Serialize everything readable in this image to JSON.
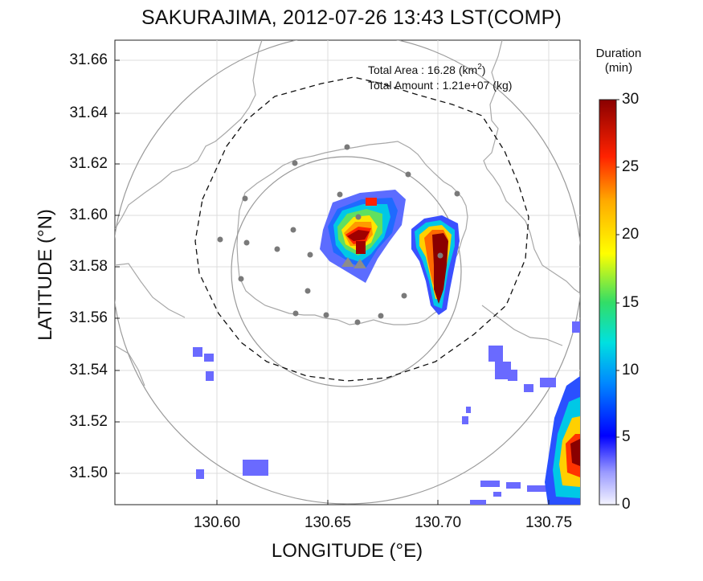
{
  "title": "SAKURAJIMA, 2012-07-26 13:43 LST(COMP)",
  "axes": {
    "xlabel": "LONGITUDE (°E)",
    "ylabel": "LATITUDE (°N)",
    "xticks": [
      "130.60",
      "130.65",
      "130.70",
      "130.75"
    ],
    "yticks": [
      "31.66",
      "31.64",
      "31.62",
      "31.60",
      "31.58",
      "31.56",
      "31.54",
      "31.52",
      "31.50"
    ],
    "xlim": [
      130.553,
      130.763
    ],
    "ylim": [
      31.488,
      31.666
    ]
  },
  "annotation": {
    "area_label": "Total Area   : 16.28 (km",
    "area_unit_sup": "2",
    "area_close": ")",
    "amount_label": "Total Amount : 1.21e+07 (kg)"
  },
  "colorbar": {
    "title_line1": "Duration",
    "title_line2": "(min)",
    "ticks": [
      "30",
      "25",
      "20",
      "15",
      "10",
      "5",
      "0"
    ],
    "range": [
      0,
      30
    ]
  },
  "colors": {
    "coast": "#a8a8a8",
    "grid": "#dcdcdc",
    "station": "#7a7a7a",
    "range_ring": "#9a9a9a"
  }
}
